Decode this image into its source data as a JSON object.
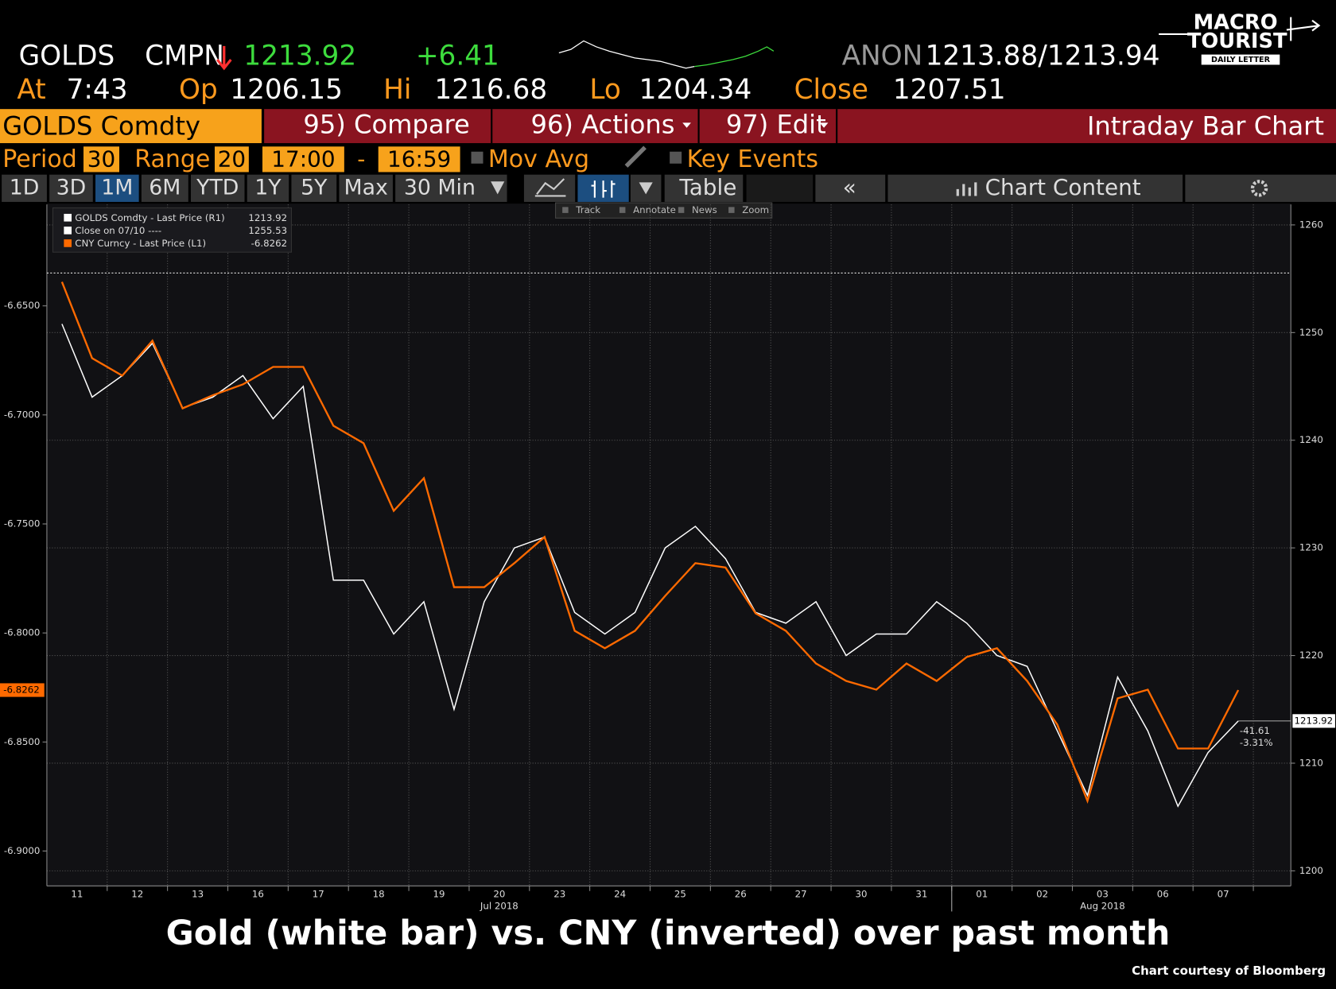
{
  "header": {
    "ticker": "GOLDS",
    "source": "CMPN",
    "price": "1213.92",
    "change": "+6.41",
    "quote_source": "ANON",
    "bid_ask": "1213.88/1213.94",
    "time_label": "At",
    "time": "7:43",
    "open_label": "Op",
    "open": "1206.15",
    "high_label": "Hi",
    "high": "1216.68",
    "low_label": "Lo",
    "low": "1204.34",
    "close_label": "Close",
    "close": "1207.51"
  },
  "logo": {
    "line1": "MACRO",
    "line2": "TOURIST",
    "line3": "DAILY LETTER"
  },
  "tabs": {
    "security": "GOLDS Comdty",
    "compare": "95) Compare",
    "actions": "96) Actions",
    "edit": "97) Edit",
    "view": "Intraday Bar Chart"
  },
  "settings": {
    "period_label": "Period",
    "period": "30",
    "range_label": "Range",
    "range": "20",
    "start": "17:00",
    "dash": "-",
    "end": "16:59",
    "mov_avg": "Mov Avg",
    "key_events": "Key Events"
  },
  "ranges": [
    "1D",
    "3D",
    "1M",
    "6M",
    "YTD",
    "1Y",
    "5Y",
    "Max",
    "30 Min"
  ],
  "table": "Table",
  "chart_content": "Chart Content",
  "tools": [
    "Track",
    "Annotate",
    "News",
    "Zoom"
  ],
  "chart_data": {
    "type": "line",
    "categories": [
      "11",
      null,
      "12",
      null,
      "13",
      null,
      "16",
      null,
      "17",
      null,
      "18",
      null,
      "19",
      null,
      "20",
      null,
      "23",
      null,
      "24",
      null,
      "25",
      null,
      "26",
      null,
      "27",
      null,
      "30",
      null,
      "31",
      null,
      "01",
      null,
      "02",
      null,
      "03",
      null,
      "06",
      null,
      "07",
      null
    ],
    "month_labels": [
      "Jul 2018",
      "Aug 2018"
    ],
    "series": [
      {
        "name": "GOLDS Comdty - Last Price (R1)",
        "color": "#ffffff",
        "axis": "y2",
        "values": [
          1250.8,
          1244,
          1246,
          1249,
          1243,
          1244,
          1246,
          1242,
          1245,
          1227,
          1227,
          1222,
          1225,
          1215,
          1225,
          1230,
          1231,
          1224,
          1222,
          1224,
          1230,
          1232,
          1229,
          1224,
          1223,
          1225,
          1220,
          1222,
          1222,
          1225,
          1223,
          1220,
          1219,
          1213,
          1207,
          1218,
          1213,
          1206,
          1211,
          1213.92
        ]
      },
      {
        "name": "CNY Curncy - Last Price (L1)",
        "color": "#ff6a00",
        "axis": "y",
        "values": [
          -6.639,
          -6.674,
          -6.682,
          -6.666,
          -6.697,
          -6.691,
          -6.686,
          -6.678,
          -6.678,
          -6.705,
          -6.713,
          -6.744,
          -6.729,
          -6.779,
          -6.779,
          -6.768,
          -6.756,
          -6.799,
          -6.807,
          -6.799,
          -6.783,
          -6.768,
          -6.77,
          -6.791,
          -6.799,
          -6.814,
          -6.822,
          -6.826,
          -6.814,
          -6.822,
          -6.811,
          -6.807,
          -6.822,
          -6.842,
          -6.877,
          -6.83,
          -6.826,
          -6.853,
          -6.853,
          -6.8262
        ]
      }
    ],
    "reference_line": {
      "name": "Close on 07/10 ----",
      "value": 1255.53
    },
    "annotations": [
      "-41.61",
      "-3.31%"
    ],
    "ylim": [
      -6.6035,
      -6.916
    ],
    "yticks": [
      {
        "value": -6.65,
        "label": "-6.6500"
      },
      {
        "value": -6.7,
        "label": "-6.7000"
      },
      {
        "value": -6.75,
        "label": "-6.7500"
      },
      {
        "value": -6.8,
        "label": "-6.8000"
      },
      {
        "value": -6.85,
        "label": "-6.8500"
      },
      {
        "value": -6.9,
        "label": "-6.9000"
      }
    ],
    "y2lim": [
      1198.6,
      1261.9
    ],
    "y2ticks": [
      1200,
      1210,
      1220,
      1230,
      1240,
      1250,
      1260
    ],
    "grid": true
  },
  "caption": "Gold (white bar) vs. CNY (inverted) over past month",
  "credit": "Chart courtesy of Bloomberg"
}
